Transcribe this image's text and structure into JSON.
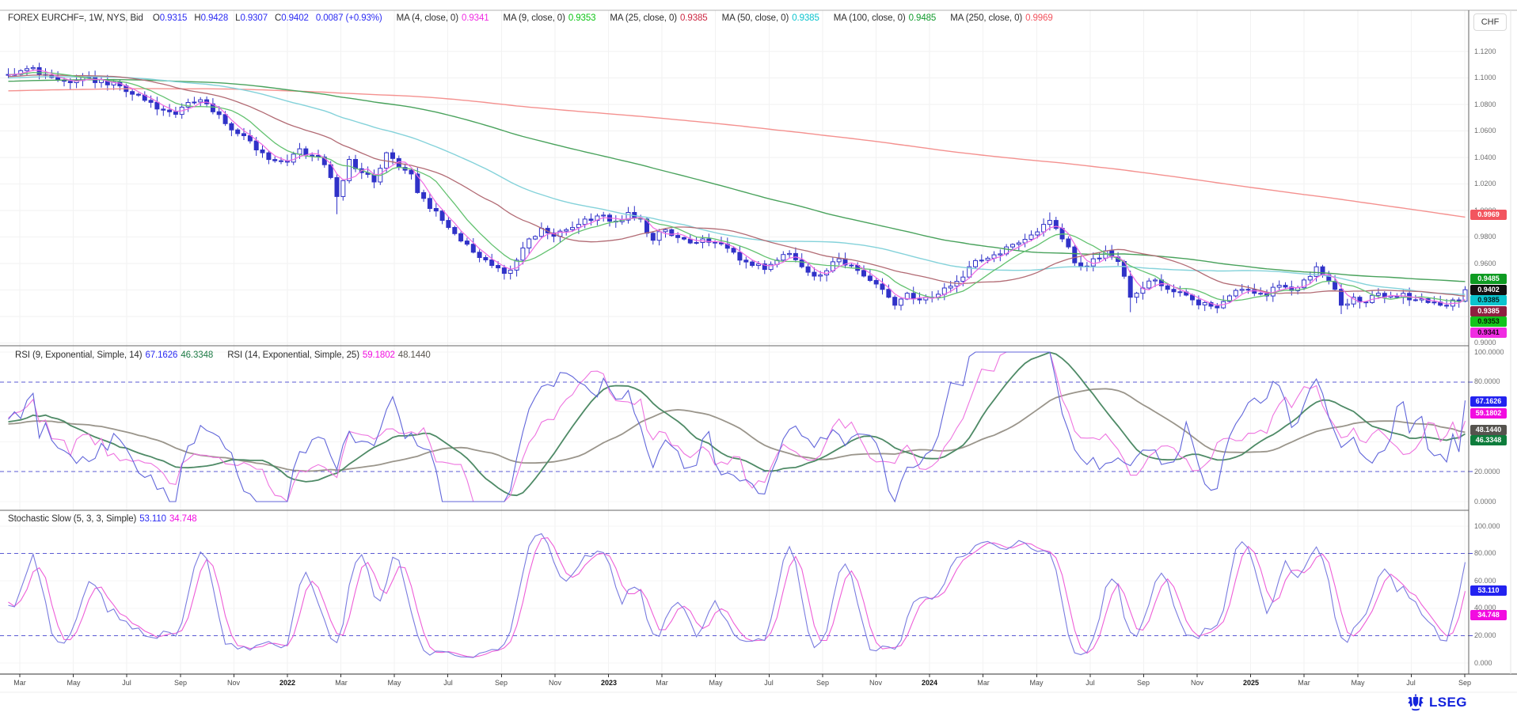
{
  "header": {
    "instrument": "FOREX EURCHF=, 1W, NYS, Bid",
    "ohlc_fields": [
      {
        "label": "O",
        "value": "0.9315"
      },
      {
        "label": "H",
        "value": "0.9428"
      },
      {
        "label": "L",
        "value": "0.9307"
      },
      {
        "label": "C",
        "value": "0.9402"
      },
      {
        "label": "",
        "value": "0.0087 (+0.93%)"
      }
    ],
    "ohlc_value_color": "#2b2bf2",
    "ma_legend": [
      {
        "label": "MA (4, close, 0)",
        "value": "0.9341",
        "color": "#f02ce2"
      },
      {
        "label": "MA (9, close, 0)",
        "value": "0.9353",
        "color": "#0cc414"
      },
      {
        "label": "MA (25, close, 0)",
        "value": "0.9385",
        "color": "#cc2944"
      },
      {
        "label": "MA (50, close, 0)",
        "value": "0.9385",
        "color": "#0cc4ce"
      },
      {
        "label": "MA (100, close, 0)",
        "value": "0.9485",
        "color": "#129b2e"
      },
      {
        "label": "MA (250, close, 0)",
        "value": "0.9969",
        "color": "#f2555f"
      }
    ]
  },
  "currency_button": {
    "label": "CHF"
  },
  "main_axis": {
    "ticks": [
      {
        "label": "1.1200",
        "value": 1.12
      },
      {
        "label": "1.1000",
        "value": 1.1
      },
      {
        "label": "1.0800",
        "value": 1.08
      },
      {
        "label": "1.0600",
        "value": 1.06
      },
      {
        "label": "1.0400",
        "value": 1.04
      },
      {
        "label": "1.0200",
        "value": 1.02
      },
      {
        "label": "1.0000",
        "value": 1.0
      },
      {
        "label": "0.9800",
        "value": 0.98
      },
      {
        "label": "0.9600",
        "value": 0.96
      },
      {
        "label": "0.9400",
        "value": 0.94
      },
      {
        "label": "0.9200",
        "value": 0.92
      },
      {
        "label": "0.9000",
        "value": 0.9
      }
    ],
    "badges": [
      {
        "text": "0.9969",
        "value": 0.9969,
        "bg": "#f2555f",
        "fg": "#ffffff"
      },
      {
        "text": "0.9485",
        "value": 0.9485,
        "bg": "#0e9b22",
        "fg": "#ffffff"
      },
      {
        "text": "0.9402",
        "value": 0.9402,
        "bg": "#101010",
        "fg": "#ffffff"
      },
      {
        "text": "0.9385",
        "value": 0.9385,
        "bg": "#0cc4ce",
        "fg": "#002020"
      },
      {
        "text": "0.9385",
        "value": 0.93848,
        "bg": "#8f2040",
        "fg": "#ffffff"
      },
      {
        "text": "0.9353",
        "value": 0.9353,
        "bg": "#12c41c",
        "fg": "#002000"
      },
      {
        "text": "0.9341",
        "value": 0.9341,
        "bg": "#f02ce2",
        "fg": "#200020"
      }
    ]
  },
  "rsi": {
    "legend": [
      {
        "label": "RSI (9, Exponential, Simple, 14)",
        "values": [
          {
            "text": "67.1626",
            "color": "#2b2bf2"
          },
          {
            "text": "46.3348",
            "color": "#1d7a45"
          }
        ]
      },
      {
        "label": "RSI (14, Exponential, Simple, 25)",
        "values": [
          {
            "text": "59.1802",
            "color": "#f20ce0"
          },
          {
            "text": "48.1440",
            "color": "#5a564f"
          }
        ]
      }
    ],
    "ticks": [
      {
        "label": "100.0000",
        "value": 100
      },
      {
        "label": "80.0000",
        "value": 80
      },
      {
        "label": "60.0000",
        "value": 60
      },
      {
        "label": "40.0000",
        "value": 40
      },
      {
        "label": "20.0000",
        "value": 20
      },
      {
        "label": "0.0000",
        "value": 0
      }
    ],
    "badges": [
      {
        "text": "67.1626",
        "value": 67.1626,
        "bg": "#2222f0",
        "fg": "#ffffff"
      },
      {
        "text": "59.1802",
        "value": 59.1802,
        "bg": "#f20ce0",
        "fg": "#ffffff"
      },
      {
        "text": "48.1440",
        "value": 48.144,
        "bg": "#55534e",
        "fg": "#ffffff"
      },
      {
        "text": "46.3348",
        "value": 46.3348,
        "bg": "#0e7d3c",
        "fg": "#ffffff"
      }
    ]
  },
  "stochastic": {
    "legend_label": "Stochastic Slow (5, 3, 3, Simple)",
    "legend_values": [
      {
        "text": "53.110",
        "color": "#2b2bf2"
      },
      {
        "text": "34.748",
        "color": "#f20ce0"
      }
    ],
    "ticks": [
      {
        "label": "100.000",
        "value": 100
      },
      {
        "label": "80.000",
        "value": 80
      },
      {
        "label": "60.000",
        "value": 60
      },
      {
        "label": "40.000",
        "value": 40
      },
      {
        "label": "20.000",
        "value": 20
      },
      {
        "label": "0.000",
        "value": 0
      }
    ],
    "badges": [
      {
        "text": "53.110",
        "value": 53.11,
        "bg": "#2222f0",
        "fg": "#ffffff"
      },
      {
        "text": "34.748",
        "value": 34.748,
        "bg": "#f20ce0",
        "fg": "#ffffff"
      }
    ]
  },
  "time_axis": {
    "labels": [
      "Mar",
      "May",
      "Jul",
      "Sep",
      "Nov",
      "2022",
      "Mar",
      "May",
      "Jul",
      "Sep",
      "Nov",
      "2023",
      "Mar",
      "May",
      "Jul",
      "Sep",
      "Nov",
      "2024",
      "Mar",
      "May",
      "Jul",
      "Sep",
      "Nov",
      "2025",
      "Mar",
      "May",
      "Jul",
      "Sep"
    ]
  },
  "footer": {
    "logo_text": "LSEG"
  },
  "chart_data": [
    {
      "type": "candlestick",
      "title": "FOREX EURCHF= 1W Bid",
      "x_range": [
        "2021-02",
        "2025-09"
      ],
      "ylim": [
        0.898,
        1.151
      ],
      "yticks": [
        1.12,
        1.1,
        1.08,
        1.06,
        1.04,
        1.02,
        1.0,
        0.98,
        0.96,
        0.94,
        0.92,
        0.9
      ],
      "grid": true,
      "n_bars": 236,
      "candle_color": "#3032c8",
      "last_bar": {
        "open": 0.9315,
        "high": 0.9428,
        "low": 0.9307,
        "close": 0.9402,
        "change": "0.0087",
        "change_pct": "+0.93%"
      },
      "close_keypoints": [
        [
          0,
          1.1025
        ],
        [
          3,
          1.107
        ],
        [
          6,
          1.102
        ],
        [
          9,
          1.0975
        ],
        [
          12,
          1.1005
        ],
        [
          15,
          1.0985
        ],
        [
          18,
          1.094
        ],
        [
          21,
          1.087
        ],
        [
          24,
          1.0765
        ],
        [
          27,
          1.0725
        ],
        [
          29,
          1.0815
        ],
        [
          31,
          1.0835
        ],
        [
          33,
          1.0745
        ],
        [
          35,
          1.0655
        ],
        [
          37,
          1.058
        ],
        [
          39,
          1.0525
        ],
        [
          41,
          1.0435
        ],
        [
          43,
          1.0375
        ],
        [
          45,
          1.0365
        ],
        [
          47,
          1.0465
        ],
        [
          49,
          1.0415
        ],
        [
          51,
          1.0345
        ],
        [
          53,
          1.0105
        ],
        [
          54,
          1.0225
        ],
        [
          55,
          1.0385
        ],
        [
          57,
          1.0285
        ],
        [
          59,
          1.0215
        ],
        [
          61,
          1.0435
        ],
        [
          63,
          1.0325
        ],
        [
          65,
          1.0275
        ],
        [
          66,
          1.0135
        ],
        [
          68,
          1.0015
        ],
        [
          70,
          0.9925
        ],
        [
          72,
          0.9825
        ],
        [
          74,
          0.9745
        ],
        [
          76,
          0.9645
        ],
        [
          78,
          0.9585
        ],
        [
          80,
          0.9525
        ],
        [
          82,
          0.9625
        ],
        [
          84,
          0.9785
        ],
        [
          86,
          0.9865
        ],
        [
          88,
          0.9805
        ],
        [
          90,
          0.9855
        ],
        [
          92,
          0.9895
        ],
        [
          94,
          0.9925
        ],
        [
          96,
          0.9965
        ],
        [
          98,
          0.9915
        ],
        [
          100,
          0.9985
        ],
        [
          102,
          0.9935
        ],
        [
          104,
          0.9775
        ],
        [
          106,
          0.9855
        ],
        [
          108,
          0.9795
        ],
        [
          110,
          0.9755
        ],
        [
          112,
          0.9785
        ],
        [
          114,
          0.9755
        ],
        [
          116,
          0.9715
        ],
        [
          118,
          0.9625
        ],
        [
          120,
          0.9585
        ],
        [
          122,
          0.9555
        ],
        [
          124,
          0.9625
        ],
        [
          126,
          0.9675
        ],
        [
          128,
          0.9575
        ],
        [
          130,
          0.9505
        ],
        [
          132,
          0.9545
        ],
        [
          134,
          0.9635
        ],
        [
          136,
          0.9585
        ],
        [
          138,
          0.9505
        ],
        [
          140,
          0.9445
        ],
        [
          142,
          0.9345
        ],
        [
          143,
          0.9285
        ],
        [
          145,
          0.9375
        ],
        [
          147,
          0.9325
        ],
        [
          149,
          0.9345
        ],
        [
          151,
          0.9415
        ],
        [
          153,
          0.9465
        ],
        [
          155,
          0.9575
        ],
        [
          157,
          0.9625
        ],
        [
          159,
          0.9665
        ],
        [
          161,
          0.9725
        ],
        [
          163,
          0.9755
        ],
        [
          165,
          0.9815
        ],
        [
          167,
          0.9895
        ],
        [
          168,
          0.9925
        ],
        [
          169,
          0.9865
        ],
        [
          170,
          0.9785
        ],
        [
          171,
          0.9725
        ],
        [
          172,
          0.9605
        ],
        [
          173,
          0.9575
        ],
        [
          175,
          0.9635
        ],
        [
          177,
          0.9695
        ],
        [
          179,
          0.9615
        ],
        [
          181,
          0.9345
        ],
        [
          183,
          0.9415
        ],
        [
          185,
          0.9475
        ],
        [
          187,
          0.9405
        ],
        [
          189,
          0.9385
        ],
        [
          191,
          0.9325
        ],
        [
          193,
          0.9305
        ],
        [
          195,
          0.9265
        ],
        [
          197,
          0.9355
        ],
        [
          199,
          0.9405
        ],
        [
          201,
          0.9375
        ],
        [
          203,
          0.9355
        ],
        [
          205,
          0.9435
        ],
        [
          207,
          0.9395
        ],
        [
          209,
          0.9475
        ],
        [
          211,
          0.9575
        ],
        [
          212,
          0.9515
        ],
        [
          213,
          0.9465
        ],
        [
          214,
          0.9405
        ],
        [
          215,
          0.9285
        ],
        [
          217,
          0.9345
        ],
        [
          219,
          0.9305
        ],
        [
          221,
          0.9375
        ],
        [
          223,
          0.9355
        ],
        [
          225,
          0.9375
        ],
        [
          227,
          0.9325
        ],
        [
          229,
          0.9305
        ],
        [
          231,
          0.9285
        ],
        [
          233,
          0.9325
        ],
        [
          234,
          0.9315
        ],
        [
          235,
          0.9402
        ]
      ],
      "special_wicks": [
        {
          "i": 53,
          "low": 0.9972
        },
        {
          "i": 80,
          "low": 0.9478
        },
        {
          "i": 143,
          "low": 0.9252
        },
        {
          "i": 168,
          "high": 0.9985
        },
        {
          "i": 181,
          "low": 0.9232
        },
        {
          "i": 215,
          "low": 0.9218
        }
      ],
      "noise": 0.0028,
      "seed": 11,
      "prehistory": {
        "bars": 250,
        "from": 1.078,
        "to": 1.1025
      },
      "overlays": [
        {
          "name": "MA (4, close, 0)",
          "period": 4,
          "last": 0.9341,
          "color": "#f06ae2",
          "width": 1.2
        },
        {
          "name": "MA (9, close, 0)",
          "period": 9,
          "last": 0.9353,
          "color": "#63c270",
          "width": 1.3
        },
        {
          "name": "MA (25, close, 0)",
          "period": 25,
          "last": 0.9385,
          "color": "#b26b74",
          "width": 1.3
        },
        {
          "name": "MA (50, close, 0)",
          "period": 50,
          "last": 0.9385,
          "color": "#84d2da",
          "width": 1.4
        },
        {
          "name": "MA (100, close, 0)",
          "period": 100,
          "last": 0.9485,
          "color": "#49a25c",
          "width": 1.4
        },
        {
          "name": "MA (250, close, 0)",
          "period": 250,
          "last": 0.9969,
          "color": "#f4918f",
          "width": 1.4
        }
      ]
    },
    {
      "type": "line",
      "name": "RSI",
      "ylim": [
        0,
        100
      ],
      "levels": [
        80,
        20
      ],
      "series": [
        {
          "name": "RSI 9",
          "kind": "rsi",
          "period": 9,
          "color": "#6166da",
          "width": 1.1,
          "last": 67.1626
        },
        {
          "name": "RSI 9 smoothing MA 14",
          "kind": "sma",
          "source": 0,
          "period": 14,
          "color": "#4e8a66",
          "width": 1.8,
          "last": 46.3348
        },
        {
          "name": "RSI 14",
          "kind": "rsi",
          "period": 14,
          "color": "#ee74e0",
          "width": 1.1,
          "last": 59.1802
        },
        {
          "name": "RSI 14 smoothing MA 25",
          "kind": "sma",
          "source": 2,
          "period": 25,
          "color": "#9a958b",
          "width": 1.8,
          "last": 48.144
        }
      ]
    },
    {
      "type": "line",
      "name": "Stochastic Slow",
      "params": {
        "k_period": 5,
        "k_smooth": 3,
        "d_period": 3,
        "ma_type": "Simple"
      },
      "ylim": [
        0,
        100
      ],
      "levels": [
        80,
        20
      ],
      "series": [
        {
          "name": "%K slow",
          "color": "#797bdf",
          "width": 1.1,
          "last": 53.11
        },
        {
          "name": "%D",
          "color": "#ee5ed8",
          "width": 1.1,
          "last": 34.748
        }
      ]
    }
  ]
}
